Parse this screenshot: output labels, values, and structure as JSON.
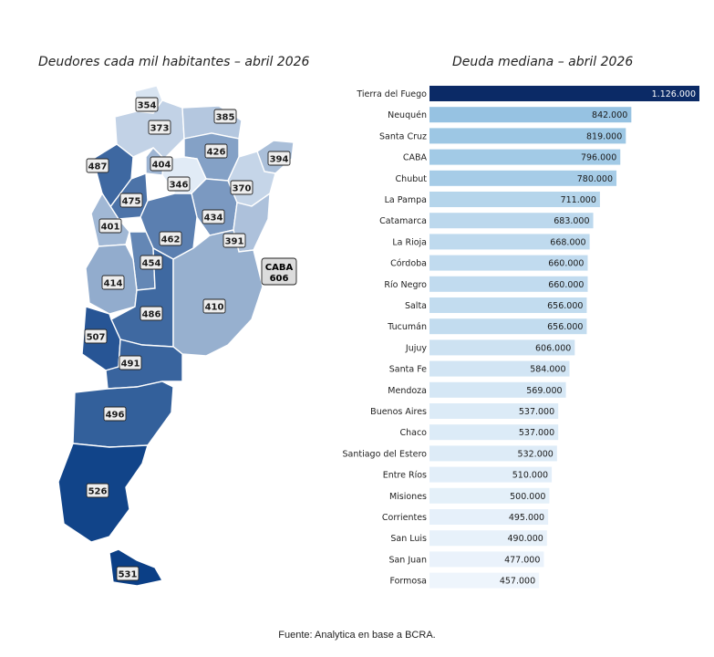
{
  "map": {
    "title": "Deudores cada mil habitantes – abril 2026",
    "scale": {
      "min": 340,
      "max": 531,
      "low_color": "#e8f1fa",
      "high_color": "#0b3f86"
    },
    "provinces": [
      {
        "name": "Jujuy",
        "value": 354
      },
      {
        "name": "Salta",
        "value": 373
      },
      {
        "name": "Formosa",
        "value": 385
      },
      {
        "name": "Chaco",
        "value": 426
      },
      {
        "name": "Misiones",
        "value": 394
      },
      {
        "name": "Catamarca",
        "value": 487
      },
      {
        "name": "Tucumán",
        "value": 404
      },
      {
        "name": "Santiago del Estero",
        "value": 346
      },
      {
        "name": "Corrientes",
        "value": 370
      },
      {
        "name": "La Rioja",
        "value": 475
      },
      {
        "name": "Santa Fe",
        "value": 434
      },
      {
        "name": "San Juan",
        "value": 401
      },
      {
        "name": "Córdoba",
        "value": 462
      },
      {
        "name": "Entre Ríos",
        "value": 391
      },
      {
        "name": "San Luis",
        "value": 454
      },
      {
        "name": "Mendoza",
        "value": 414
      },
      {
        "name": "La Pampa",
        "value": 486
      },
      {
        "name": "Buenos Aires",
        "value": 410
      },
      {
        "name": "Neuquén",
        "value": 507
      },
      {
        "name": "Río Negro",
        "value": 491
      },
      {
        "name": "Chubut",
        "value": 496
      },
      {
        "name": "Santa Cruz",
        "value": 526
      },
      {
        "name": "Tierra del Fuego",
        "value": 531
      }
    ],
    "caba": {
      "label": "CABA",
      "value": "606"
    }
  },
  "chart_data": {
    "type": "bar",
    "orientation": "horizontal",
    "title": "Deuda mediana – abril 2026",
    "xlim": [
      0,
      1126000
    ],
    "categories": [
      "Tierra del Fuego",
      "Neuquén",
      "Santa Cruz",
      "CABA",
      "Chubut",
      "La Pampa",
      "Catamarca",
      "La Rioja",
      "Córdoba",
      "Río Negro",
      "Salta",
      "Tucumán",
      "Jujuy",
      "Santa Fe",
      "Mendoza",
      "Buenos Aires",
      "Chaco",
      "Santiago del Estero",
      "Entre Ríos",
      "Misiones",
      "Corrientes",
      "San Luis",
      "San Juan",
      "Formosa"
    ],
    "values": [
      1126000,
      842000,
      819000,
      796000,
      780000,
      711000,
      683000,
      668000,
      660000,
      660000,
      656000,
      656000,
      606000,
      584000,
      569000,
      537000,
      537000,
      532000,
      510000,
      500000,
      495000,
      490000,
      477000,
      457000
    ],
    "value_labels": [
      "1.126.000",
      "842.000",
      "819.000",
      "796.000",
      "780.000",
      "711.000",
      "683.000",
      "668.000",
      "660.000",
      "660.000",
      "656.000",
      "656.000",
      "606.000",
      "584.000",
      "569.000",
      "537.000",
      "537.000",
      "532.000",
      "510.000",
      "500.000",
      "495.000",
      "490.000",
      "477.000",
      "457.000"
    ],
    "color_scale": {
      "low": "#eef5fc",
      "mid": "#9cc6e4",
      "high": "#0b2a66"
    },
    "grid": false
  },
  "source": "Fuente: Analytica en base a BCRA."
}
